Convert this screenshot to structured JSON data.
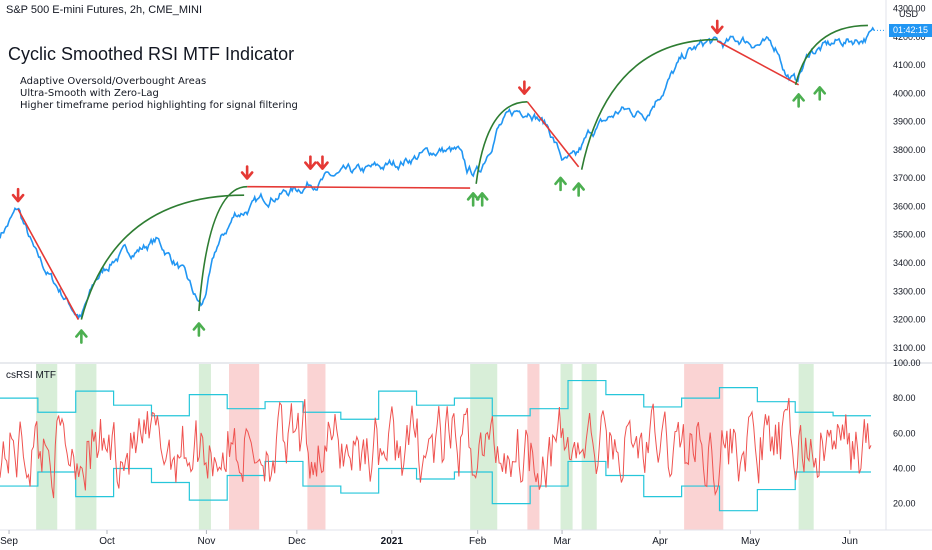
{
  "header": {
    "symbol_line": "S&P 500 E-mini Futures, 2h, CME_MINI",
    "title": "Cyclic Smoothed RSI MTF Indicator",
    "features": [
      "Adaptive Oversold/Overbought Areas",
      "Ultra-Smooth with Zero-Lag",
      "Higher timeframe period highlighting for signal filtering"
    ],
    "currency": "USD",
    "countdown": "01:42:15"
  },
  "colors": {
    "price": "#2196f3",
    "trend_down": "#e53935",
    "trend_up": "#2e7d32",
    "arrow_down": "#e53935",
    "arrow_up": "#4caf50",
    "rsi": "#ef5350",
    "band": "#26c6da",
    "zone_red": "#f8c4c4",
    "zone_green": "#cbe8cb",
    "axis_text": "#131722",
    "grid": "#e8ecf0"
  },
  "chart_data": [
    {
      "type": "line",
      "title": "S&P 500 E-mini Futures, 2h, CME_MINI",
      "yrange": [
        3050,
        4330
      ],
      "yticks": [
        "4300.00",
        "4200.00",
        "4100.00",
        "4000.00",
        "3900.00",
        "3800.00",
        "3700.00",
        "3600.00",
        "3500.00",
        "3400.00",
        "3300.00",
        "3200.00",
        "3100.00"
      ],
      "ytick_values": [
        4300,
        4200,
        4100,
        4000,
        3900,
        3800,
        3700,
        3600,
        3500,
        3400,
        3300,
        3200,
        3100
      ],
      "xticks": [
        "Sep",
        "Oct",
        "Nov",
        "Dec",
        "2021",
        "Feb",
        "Mar",
        "Apr",
        "May",
        "Jun"
      ],
      "xtick_times": [
        0.3,
        3.55,
        6.85,
        9.85,
        13.0,
        15.85,
        18.65,
        21.9,
        24.9,
        28.2
      ],
      "xrange": [
        0,
        29.2
      ],
      "price_anchors": [
        [
          0.0,
          3500
        ],
        [
          0.6,
          3590
        ],
        [
          1.2,
          3420
        ],
        [
          1.8,
          3330
        ],
        [
          2.5,
          3230
        ],
        [
          2.7,
          3210
        ],
        [
          3.2,
          3340
        ],
        [
          3.8,
          3420
        ],
        [
          4.6,
          3450
        ],
        [
          5.2,
          3480
        ],
        [
          6.0,
          3380
        ],
        [
          6.5,
          3270
        ],
        [
          6.7,
          3240
        ],
        [
          7.2,
          3450
        ],
        [
          7.8,
          3570
        ],
        [
          8.4,
          3600
        ],
        [
          9.0,
          3640
        ],
        [
          9.8,
          3660
        ],
        [
          10.4,
          3690
        ],
        [
          11.2,
          3705
        ],
        [
          12.0,
          3720
        ],
        [
          12.8,
          3740
        ],
        [
          13.6,
          3770
        ],
        [
          14.6,
          3800
        ],
        [
          15.2,
          3790
        ],
        [
          15.5,
          3720
        ],
        [
          15.9,
          3720
        ],
        [
          16.5,
          3880
        ],
        [
          17.1,
          3930
        ],
        [
          17.6,
          3950
        ],
        [
          18.2,
          3880
        ],
        [
          18.7,
          3760
        ],
        [
          19.1,
          3760
        ],
        [
          19.6,
          3860
        ],
        [
          20.6,
          3940
        ],
        [
          21.4,
          3930
        ],
        [
          22.2,
          4050
        ],
        [
          22.8,
          4140
        ],
        [
          23.5,
          4180
        ],
        [
          24.0,
          4170
        ],
        [
          24.6,
          4190
        ],
        [
          25.1,
          4180
        ],
        [
          25.8,
          4160
        ],
        [
          26.1,
          4070
        ],
        [
          26.4,
          4040
        ],
        [
          26.9,
          4150
        ],
        [
          27.3,
          4160
        ],
        [
          27.8,
          4180
        ],
        [
          28.4,
          4190
        ],
        [
          29.0,
          4210
        ]
      ],
      "down_trend_lines": [
        [
          [
            0.6,
            3590
          ],
          [
            2.6,
            3200
          ]
        ],
        [
          [
            8.2,
            3670
          ],
          [
            15.6,
            3665
          ]
        ],
        [
          [
            17.5,
            3970
          ],
          [
            19.2,
            3740
          ]
        ],
        [
          [
            23.8,
            4185
          ],
          [
            26.5,
            4030
          ]
        ]
      ],
      "up_trend_curves": [
        [
          [
            2.7,
            3200
          ],
          [
            8.1,
            3640
          ]
        ],
        [
          [
            6.6,
            3230
          ],
          [
            8.2,
            3670
          ]
        ],
        [
          [
            15.8,
            3680
          ],
          [
            17.5,
            3970
          ]
        ],
        [
          [
            19.3,
            3730
          ],
          [
            23.8,
            4190
          ]
        ],
        [
          [
            26.4,
            4030
          ],
          [
            28.8,
            4240
          ]
        ]
      ],
      "sell_signals": [
        [
          0.6,
          3640
        ],
        [
          8.2,
          3720
        ],
        [
          10.3,
          3755
        ],
        [
          10.7,
          3755
        ],
        [
          17.4,
          4020
        ],
        [
          23.8,
          4235
        ]
      ],
      "buy_signals": [
        [
          2.7,
          3140
        ],
        [
          6.6,
          3165
        ],
        [
          15.7,
          3625
        ],
        [
          16.0,
          3625
        ],
        [
          18.6,
          3680
        ],
        [
          19.2,
          3660
        ],
        [
          26.5,
          3975
        ],
        [
          27.2,
          4000
        ]
      ]
    },
    {
      "type": "line",
      "title": "csRSI MTF",
      "yrange": [
        5,
        100
      ],
      "yticks": [
        "100.00",
        "80.00",
        "60.00",
        "40.00",
        "20.00"
      ],
      "ytick_values": [
        100,
        80,
        60,
        40,
        20
      ],
      "series": [
        {
          "name": "csRSI",
          "mean": 52,
          "amplitude": 24
        },
        {
          "name": "upper band",
          "levels": [
            80,
            72,
            84,
            76,
            70,
            82,
            74,
            78,
            72,
            68,
            84,
            76,
            80,
            70,
            74,
            90,
            82,
            75,
            80,
            86,
            78,
            72,
            70
          ]
        },
        {
          "name": "lower band",
          "levels": [
            30,
            38,
            24,
            40,
            32,
            22,
            36,
            44,
            30,
            26,
            40,
            34,
            38,
            20,
            30,
            44,
            36,
            24,
            30,
            16,
            28,
            38,
            38
          ]
        }
      ],
      "red_zones": [
        [
          7.6,
          8.6
        ],
        [
          10.2,
          10.8
        ],
        [
          17.5,
          17.9
        ],
        [
          22.7,
          24.0
        ]
      ],
      "green_zones": [
        [
          1.2,
          1.9
        ],
        [
          2.5,
          3.2
        ],
        [
          6.6,
          7.0
        ],
        [
          15.6,
          16.5
        ],
        [
          18.6,
          19.0
        ],
        [
          19.3,
          19.8
        ],
        [
          26.5,
          27.0
        ]
      ]
    }
  ]
}
